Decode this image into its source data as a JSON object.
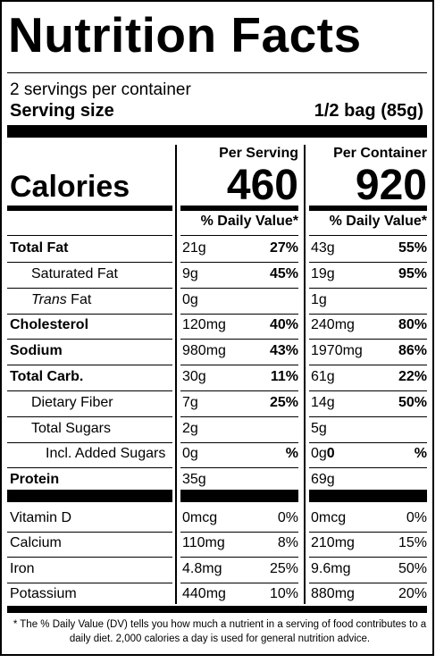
{
  "title": "Nutrition Facts",
  "servings_per_container": "2 servings per container",
  "serving_size_label": "Serving size",
  "serving_size_value": "1/2 bag (85g)",
  "calories_label": "Calories",
  "per_serving": {
    "heading": "Per Serving",
    "calories": "460",
    "dv_heading": "% Daily Value*"
  },
  "per_container": {
    "heading": "Per Container",
    "calories": "920",
    "dv_heading": "% Daily Value*"
  },
  "rows": [
    {
      "name": "Total Fat",
      "s_amt": "21g",
      "s_pct": "27%",
      "c_amt": "43g",
      "c_pct": "55%"
    },
    {
      "name": "Saturated Fat",
      "s_amt": "9g",
      "s_pct": "45%",
      "c_amt": "19g",
      "c_pct": "95%"
    },
    {
      "name": "Trans",
      "name2": " Fat",
      "s_amt": "0g",
      "s_pct": "",
      "c_amt": "1g",
      "c_pct": ""
    },
    {
      "name": "Cholesterol",
      "s_amt": "120mg",
      "s_pct": "40%",
      "c_amt": "240mg",
      "c_pct": "80%"
    },
    {
      "name": "Sodium",
      "s_amt": "980mg",
      "s_pct": "43%",
      "c_amt": "1970mg",
      "c_pct": "86%"
    },
    {
      "name": "Total Carb.",
      "s_amt": "30g",
      "s_pct": "11%",
      "c_amt": "61g",
      "c_pct": "22%"
    },
    {
      "name": "Dietary Fiber",
      "s_amt": "7g",
      "s_pct": "25%",
      "c_amt": "14g",
      "c_pct": "50%"
    },
    {
      "name": "Total Sugars",
      "s_amt": "2g",
      "s_pct": "",
      "c_amt": "5g",
      "c_pct": ""
    },
    {
      "name": "Incl. Added Sugars",
      "s_amt": "0g",
      "s_pct": "%",
      "c_amt": "0g",
      "c_amt_bold": "0",
      "c_pct": "%"
    },
    {
      "name": "Protein",
      "s_amt": "35g",
      "s_pct": "",
      "c_amt": "69g",
      "c_pct": ""
    }
  ],
  "vitamins": [
    {
      "name": "Vitamin D",
      "s_amt": "0mcg",
      "s_pct": "0%",
      "c_amt": "0mcg",
      "c_pct": "0%"
    },
    {
      "name": "Calcium",
      "s_amt": "110mg",
      "s_pct": "8%",
      "c_amt": "210mg",
      "c_pct": "15%"
    },
    {
      "name": "Iron",
      "s_amt": "4.8mg",
      "s_pct": "25%",
      "c_amt": "9.6mg",
      "c_pct": "50%"
    },
    {
      "name": "Potassium",
      "s_amt": "440mg",
      "s_pct": "10%",
      "c_amt": "880mg",
      "c_pct": "20%"
    }
  ],
  "footnote": "* The % Daily Value (DV) tells you how much a nutrient in a serving of food contributes to a daily diet. 2,000 calories a day is used for general nutrition advice."
}
